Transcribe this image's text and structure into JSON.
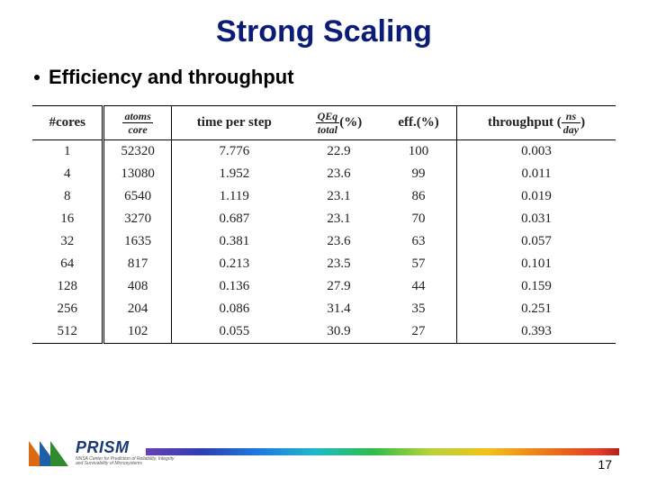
{
  "title": {
    "text": "Strong Scaling",
    "color": "#0b1c77",
    "fontsize": 34
  },
  "bullet": {
    "text": "Efficiency and throughput",
    "color": "#000000",
    "fontsize": 22
  },
  "table": {
    "type": "table",
    "font_family": "Times New Roman",
    "font_size": 15,
    "border_color": "#000000",
    "columns": [
      {
        "key": "cores",
        "header_html": "#cores"
      },
      {
        "key": "atoms",
        "header_frac": {
          "num": "atoms",
          "den": "core"
        }
      },
      {
        "key": "tps",
        "header_html": "time per step"
      },
      {
        "key": "qeq",
        "header_mixed": {
          "frac": {
            "num": "QEq",
            "den": "total"
          },
          "suffix": "(%)"
        }
      },
      {
        "key": "eff",
        "header_html": "eff.(%)"
      },
      {
        "key": "throughput",
        "header_mixed": {
          "prefix": "throughput ",
          "paren_frac": {
            "num": "ns",
            "den": "day"
          }
        }
      }
    ],
    "rows": [
      {
        "cores": "1",
        "atoms": "52320",
        "tps": "7.776",
        "qeq": "22.9",
        "eff": "100",
        "throughput": "0.003"
      },
      {
        "cores": "4",
        "atoms": "13080",
        "tps": "1.952",
        "qeq": "23.6",
        "eff": "99",
        "throughput": "0.011"
      },
      {
        "cores": "8",
        "atoms": "6540",
        "tps": "1.119",
        "qeq": "23.1",
        "eff": "86",
        "throughput": "0.019"
      },
      {
        "cores": "16",
        "atoms": "3270",
        "tps": "0.687",
        "qeq": "23.1",
        "eff": "70",
        "throughput": "0.031"
      },
      {
        "cores": "32",
        "atoms": "1635",
        "tps": "0.381",
        "qeq": "23.6",
        "eff": "63",
        "throughput": "0.057"
      },
      {
        "cores": "64",
        "atoms": "817",
        "tps": "0.213",
        "qeq": "23.5",
        "eff": "57",
        "throughput": "0.101"
      },
      {
        "cores": "128",
        "atoms": "408",
        "tps": "0.136",
        "qeq": "27.9",
        "eff": "44",
        "throughput": "0.159"
      },
      {
        "cores": "256",
        "atoms": "204",
        "tps": "0.086",
        "qeq": "31.4",
        "eff": "35",
        "throughput": "0.251"
      },
      {
        "cores": "512",
        "atoms": "102",
        "tps": "0.055",
        "qeq": "30.9",
        "eff": "27",
        "throughput": "0.393"
      }
    ]
  },
  "footer": {
    "logo_text": "PRISM",
    "logo_text_color": "#1b3a73",
    "logo_sub": "NNSA Center for Prediction of Reliability, Integrity and Survivability of Microsystems",
    "logo_tri_colors": [
      "#db6a12",
      "#1f5fa8",
      "#2f8b2d"
    ],
    "rainbow_colors": [
      "#6a3fb5",
      "#2d3fb3",
      "#1f7ae0",
      "#1ebac9",
      "#2fbc4a",
      "#b6d23a",
      "#f2c21a",
      "#ee7a18",
      "#e23a2a",
      "#b0221d"
    ],
    "page_number": "17"
  }
}
